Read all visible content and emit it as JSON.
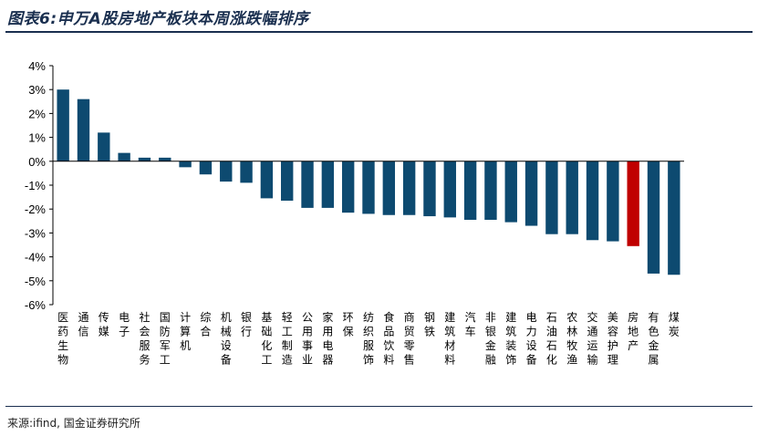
{
  "title": "图表6:申万A股房地产板块本周涨跌幅排序",
  "source": "来源:ifind, 国金证券研究所",
  "colors": {
    "bar": "#0d4a70",
    "highlight": "#c00000",
    "title": "#1a2f4f"
  },
  "chart_data": {
    "type": "bar",
    "title": "",
    "xlabel": "",
    "ylabel": "",
    "ylim": [
      -6,
      4
    ],
    "yticks": [
      "4%",
      "3%",
      "2%",
      "1%",
      "0%",
      "-1%",
      "-2%",
      "-3%",
      "-4%",
      "-5%",
      "-6%"
    ],
    "grid": false,
    "unit": "%",
    "highlight_category": "房地产",
    "categories": [
      "医药生物",
      "通信",
      "传媒",
      "电子",
      "社会服务",
      "国防军工",
      "计算机",
      "综合",
      "机械设备",
      "银行",
      "基础化工",
      "轻工制造",
      "公用事业",
      "家用电器",
      "环保",
      "纺织服饰",
      "食品饮料",
      "商贸零售",
      "钢铁",
      "建筑材料",
      "汽车",
      "非银金融",
      "建筑装饰",
      "电力设备",
      "石油石化",
      "农林牧渔",
      "交通运输",
      "美容护理",
      "房地产",
      "有色金属",
      "煤炭"
    ],
    "values": [
      3.0,
      2.6,
      1.2,
      0.35,
      0.15,
      0.15,
      -0.25,
      -0.55,
      -0.85,
      -0.9,
      -1.55,
      -1.65,
      -1.95,
      -1.95,
      -2.15,
      -2.2,
      -2.25,
      -2.25,
      -2.3,
      -2.35,
      -2.45,
      -2.45,
      -2.55,
      -2.7,
      -3.05,
      -3.05,
      -3.3,
      -3.35,
      -3.55,
      -4.7,
      -4.75
    ]
  }
}
